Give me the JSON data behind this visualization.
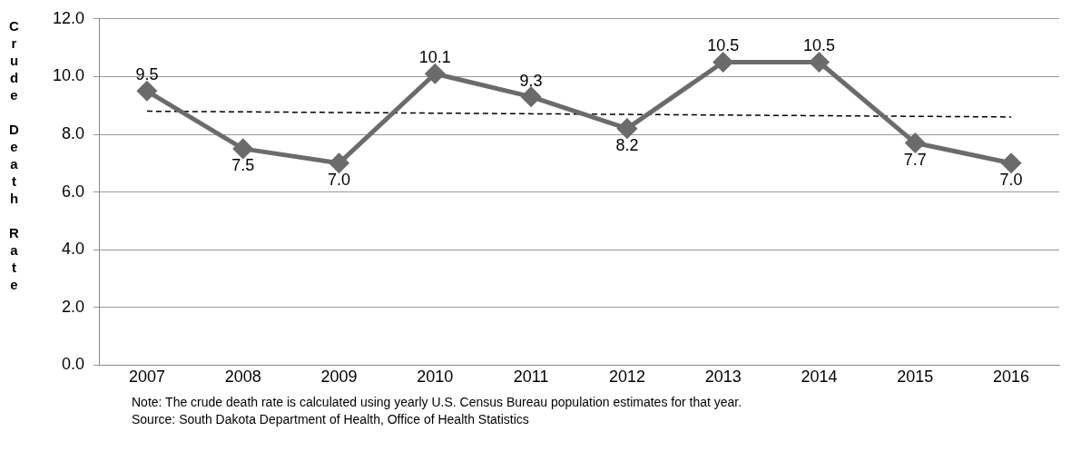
{
  "chart_data": {
    "type": "line",
    "ylabel": "Crude Death Rate",
    "categories": [
      "2007",
      "2008",
      "2009",
      "2010",
      "2011",
      "2012",
      "2013",
      "2014",
      "2015",
      "2016"
    ],
    "series": [
      {
        "color": "#6b6b6b",
        "values": [
          9.5,
          7.5,
          7.0,
          10.1,
          9.3,
          8.2,
          10.5,
          10.5,
          7.7,
          7.0
        ],
        "value_labels": [
          "9.5",
          "7.5",
          "7.0",
          "10.1",
          "9.3",
          "8.2",
          "10.5",
          "10.5",
          "7.7",
          "7.0"
        ],
        "marker": "diamond",
        "line_style": "solid"
      },
      {
        "type": "line",
        "color": "#000000",
        "values": [
          8.8,
          null,
          null,
          null,
          null,
          null,
          null,
          null,
          null,
          8.6
        ],
        "marker": "none",
        "line_style": "dashed"
      }
    ],
    "ylim": [
      0,
      12
    ],
    "yticks": [
      {
        "value": 0,
        "label": "0.0"
      },
      {
        "value": 2,
        "label": "2.0"
      },
      {
        "value": 4,
        "label": "4.0"
      },
      {
        "value": 6,
        "label": "6.0"
      },
      {
        "value": 8,
        "label": "8.0"
      },
      {
        "value": 10,
        "label": "10.0"
      },
      {
        "value": 12,
        "label": "12.0"
      }
    ],
    "grid": "y",
    "legend": false,
    "annotations": [
      "Note: The crude death rate is calculated using yearly U.S. Census Bureau population estimates for that year.",
      "Source: South Dakota Department of Health, Office of Health Statistics"
    ]
  }
}
